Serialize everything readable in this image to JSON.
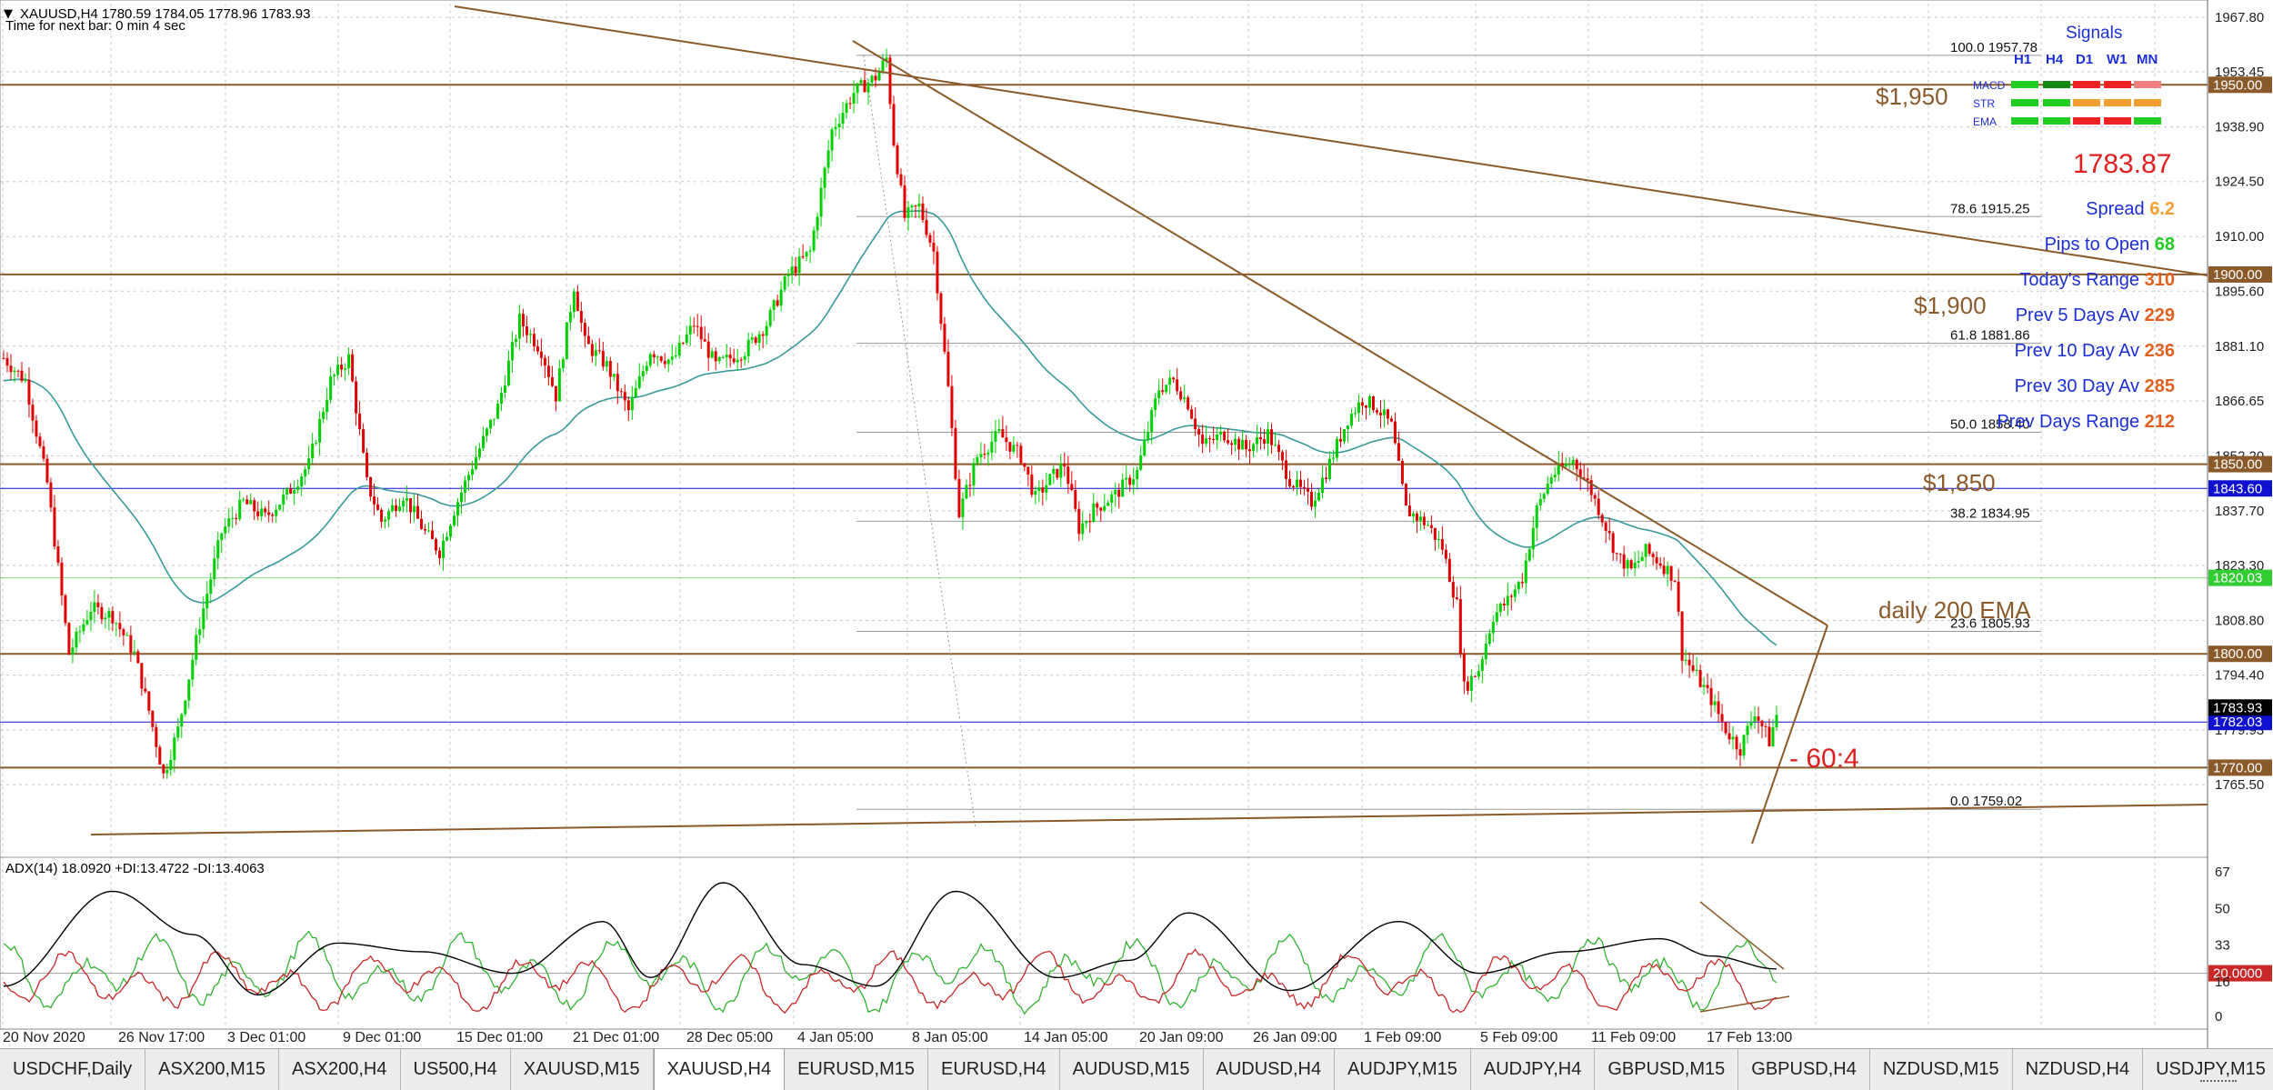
{
  "header": {
    "symbol_line": "XAUUSD,H4  1780.59 1784.05 1778.96 1783.93",
    "timer": "Time for next bar: 0 min 4 sec",
    "menu_icon": "triangle-down-icon"
  },
  "chart_data": {
    "type": "candlestick",
    "symbol": "XAUUSD",
    "timeframe": "H4",
    "ohlc_last": {
      "open": 1780.59,
      "high": 1784.05,
      "low": 1778.96,
      "close": 1783.93
    },
    "y_axis_ticks": [
      1967.8,
      1953.45,
      1938.9,
      1924.5,
      1910.0,
      1895.6,
      1881.1,
      1866.65,
      1852.2,
      1837.7,
      1823.3,
      1808.8,
      1794.4,
      1779.93,
      1765.5
    ],
    "ylim": [
      1755,
      1969
    ],
    "x_axis_ticks": [
      "20 Nov 2020",
      "26 Nov 17:00",
      "3 Dec 01:00",
      "9 Dec 01:00",
      "15 Dec 01:00",
      "21 Dec 01:00",
      "28 Dec 05:00",
      "4 Jan 05:00",
      "8 Jan 05:00",
      "14 Jan 05:00",
      "20 Jan 09:00",
      "26 Jan 09:00",
      "1 Feb 09:00",
      "5 Feb 09:00",
      "11 Feb 09:00",
      "17 Feb 13:00"
    ],
    "price_path": [
      [
        0,
        1878
      ],
      [
        6,
        1872
      ],
      [
        12,
        1845
      ],
      [
        18,
        1800
      ],
      [
        24,
        1812
      ],
      [
        30,
        1810
      ],
      [
        36,
        1800
      ],
      [
        40,
        1785
      ],
      [
        44,
        1768
      ],
      [
        48,
        1780
      ],
      [
        54,
        1808
      ],
      [
        60,
        1832
      ],
      [
        66,
        1840
      ],
      [
        72,
        1836
      ],
      [
        78,
        1842
      ],
      [
        84,
        1850
      ],
      [
        90,
        1872
      ],
      [
        95,
        1878
      ],
      [
        100,
        1845
      ],
      [
        104,
        1835
      ],
      [
        110,
        1842
      ],
      [
        116,
        1832
      ],
      [
        120,
        1827
      ],
      [
        124,
        1838
      ],
      [
        130,
        1852
      ],
      [
        136,
        1865
      ],
      [
        142,
        1888
      ],
      [
        148,
        1880
      ],
      [
        152,
        1868
      ],
      [
        157,
        1897
      ],
      [
        160,
        1882
      ],
      [
        166,
        1876
      ],
      [
        172,
        1864
      ],
      [
        178,
        1880
      ],
      [
        184,
        1877
      ],
      [
        190,
        1887
      ],
      [
        196,
        1876
      ],
      [
        204,
        1880
      ],
      [
        210,
        1887
      ],
      [
        216,
        1900
      ],
      [
        222,
        1906
      ],
      [
        228,
        1938
      ],
      [
        234,
        1948
      ],
      [
        240,
        1952
      ],
      [
        243,
        1957
      ],
      [
        245,
        1935
      ],
      [
        248,
        1915
      ],
      [
        252,
        1918
      ],
      [
        256,
        1906
      ],
      [
        260,
        1870
      ],
      [
        263,
        1837
      ],
      [
        268,
        1852
      ],
      [
        274,
        1858
      ],
      [
        280,
        1852
      ],
      [
        284,
        1841
      ],
      [
        288,
        1846
      ],
      [
        292,
        1850
      ],
      [
        296,
        1833
      ],
      [
        300,
        1838
      ],
      [
        306,
        1842
      ],
      [
        312,
        1848
      ],
      [
        318,
        1870
      ],
      [
        322,
        1872
      ],
      [
        326,
        1866
      ],
      [
        330,
        1855
      ],
      [
        336,
        1858
      ],
      [
        342,
        1854
      ],
      [
        348,
        1858
      ],
      [
        354,
        1846
      ],
      [
        360,
        1840
      ],
      [
        364,
        1848
      ],
      [
        370,
        1862
      ],
      [
        374,
        1867
      ],
      [
        378,
        1865
      ],
      [
        382,
        1860
      ],
      [
        386,
        1838
      ],
      [
        392,
        1834
      ],
      [
        396,
        1828
      ],
      [
        400,
        1813
      ],
      [
        402,
        1791
      ],
      [
        406,
        1796
      ],
      [
        410,
        1810
      ],
      [
        414,
        1814
      ],
      [
        418,
        1820
      ],
      [
        422,
        1838
      ],
      [
        426,
        1847
      ],
      [
        432,
        1851
      ],
      [
        436,
        1845
      ],
      [
        440,
        1836
      ],
      [
        444,
        1826
      ],
      [
        448,
        1822
      ],
      [
        452,
        1827
      ],
      [
        456,
        1824
      ],
      [
        460,
        1820
      ],
      [
        462,
        1800
      ],
      [
        466,
        1794
      ],
      [
        470,
        1788
      ],
      [
        474,
        1780
      ],
      [
        478,
        1775
      ],
      [
        482,
        1785
      ],
      [
        484,
        1781
      ],
      [
        486,
        1777
      ],
      [
        488,
        1783.93
      ]
    ],
    "horizontal_levels": [
      {
        "price": 1950,
        "label": "$1,950",
        "axis_label": "1950.00",
        "color": "#8b5a2b"
      },
      {
        "price": 1900,
        "label": "$1,900",
        "axis_label": "1900.00",
        "color": "#8b5a2b"
      },
      {
        "price": 1850,
        "label": "$1,850",
        "axis_label": "1850.00",
        "color": "#8b5a2b"
      },
      {
        "price": 1820.03,
        "label": "daily 200 EMA",
        "axis_label": "1820.03",
        "color": "#32cd32"
      },
      {
        "price": 1800,
        "label": "",
        "axis_label": "1800.00",
        "color": "#8b5a2b"
      },
      {
        "price": 1770,
        "label": "",
        "axis_label": "1770.00",
        "color": "#8b5a2b"
      },
      {
        "price": 1843.6,
        "label": "",
        "axis_label": "1843.60",
        "color": "#1010d0"
      },
      {
        "price": 1782.03,
        "label": "",
        "axis_label": "1782.03",
        "color": "#1010d0"
      }
    ],
    "current_price_tag": "1783.93",
    "fibonacci": [
      {
        "level": "100.0",
        "price": 1957.78
      },
      {
        "level": "78.6",
        "price": 1915.25
      },
      {
        "level": "61.8",
        "price": 1881.86
      },
      {
        "level": "50.0",
        "price": 1858.4
      },
      {
        "level": "38.2",
        "price": 1834.95
      },
      {
        "level": "23.6",
        "price": 1805.93
      },
      {
        "level": "0.0",
        "price": 1759.02
      }
    ],
    "annotation": "- 60:4",
    "indicator": {
      "name": "ADX(14)",
      "legend": "ADX(14) 18.0920 +DI:13.4722 -DI:13.4063",
      "y_ticks": [
        "67",
        "50",
        "33",
        "20.0000",
        "16",
        "0"
      ],
      "level": 20,
      "series": [
        {
          "name": "ADX",
          "color": "#000000"
        },
        {
          "name": "+DI",
          "color": "#32b432"
        },
        {
          "name": "-DI",
          "color": "#c82828"
        }
      ]
    }
  },
  "signals_panel": {
    "title": "Signals",
    "timeframes": [
      "H1",
      "H4",
      "D1",
      "W1",
      "MN"
    ],
    "rows": [
      {
        "name": "MACD",
        "colors": [
          "#22cc22",
          "#138a13",
          "#ee2222",
          "#ee2222",
          "#f08080"
        ]
      },
      {
        "name": "STR",
        "colors": [
          "#22cc22",
          "#22cc22",
          "#f0a030",
          "#f0a030",
          "#f0a030"
        ]
      },
      {
        "name": "EMA",
        "colors": [
          "#22cc22",
          "#22cc22",
          "#ee2222",
          "#ee2222",
          "#22cc22"
        ]
      }
    ],
    "price": "1783.87",
    "stats": [
      {
        "label": "Spread",
        "value": "6.2",
        "value_color": "#f0a030"
      },
      {
        "label": "Pips to Open",
        "value": "68",
        "value_color": "#22cc22"
      },
      {
        "label": "Today's Range",
        "value": "310",
        "value_color": "#e06020"
      },
      {
        "label": "Prev 5 Days Av",
        "value": "229",
        "value_color": "#e06020"
      },
      {
        "label": "Prev 10 Day Av",
        "value": "236",
        "value_color": "#e06020"
      },
      {
        "label": "Prev 30 Day Av",
        "value": "285",
        "value_color": "#e06020"
      },
      {
        "label": "Prev Days Range",
        "value": "212",
        "value_color": "#e06020"
      }
    ]
  },
  "tabs": [
    {
      "label": "USDCHF,Daily",
      "active": false
    },
    {
      "label": "ASX200,M15",
      "active": false
    },
    {
      "label": "ASX200,H4",
      "active": false
    },
    {
      "label": "US500,H4",
      "active": false
    },
    {
      "label": "XAUUSD,M15",
      "active": false
    },
    {
      "label": "XAUUSD,H4",
      "active": true
    },
    {
      "label": "EURUSD,M15",
      "active": false
    },
    {
      "label": "EURUSD,H4",
      "active": false
    },
    {
      "label": "AUDUSD,M15",
      "active": false
    },
    {
      "label": "AUDUSD,H4",
      "active": false
    },
    {
      "label": "AUDJPY,M15",
      "active": false
    },
    {
      "label": "AUDJPY,H4",
      "active": false
    },
    {
      "label": "GBPUSD,M15",
      "active": false
    },
    {
      "label": "GBPUSD,H4",
      "active": false
    },
    {
      "label": "NZDUSD,M15",
      "active": false
    },
    {
      "label": "NZDUSD,H4",
      "active": false
    },
    {
      "label": "USDJPY,M15",
      "active": false
    }
  ]
}
